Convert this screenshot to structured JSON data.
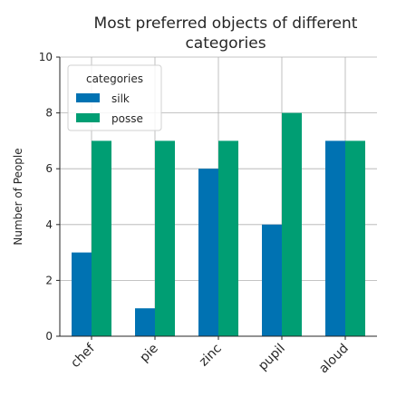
{
  "chart_data": {
    "type": "bar",
    "title": "Most preferred objects of different categories",
    "title_lines": [
      "Most preferred objects of different",
      "categories"
    ],
    "xlabel": "",
    "ylabel": "Number of People",
    "categories": [
      "chef",
      "pie",
      "zinc",
      "pupil",
      "aloud"
    ],
    "series": [
      {
        "name": "silk",
        "values": [
          3,
          1,
          6,
          4,
          7
        ],
        "color": "#0072b2"
      },
      {
        "name": "posse",
        "values": [
          7,
          7,
          7,
          8,
          7
        ],
        "color": "#009e73"
      }
    ],
    "ylim": [
      0,
      10
    ],
    "yticks": [
      "0",
      "2",
      "4",
      "6",
      "8",
      "10"
    ],
    "grid": true,
    "legend": {
      "title": "categories",
      "placement": "top-left"
    }
  }
}
